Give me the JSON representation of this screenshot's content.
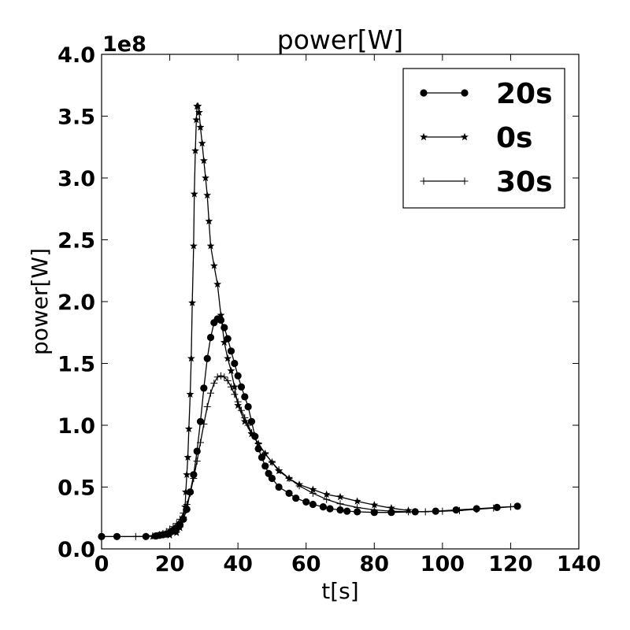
{
  "chart_data": {
    "type": "line",
    "title": "power[W]",
    "xlabel": "t[s]",
    "ylabel": "power[W]",
    "y_offset_label": "1e8",
    "xlim": [
      0,
      140
    ],
    "ylim": [
      0,
      400000000
    ],
    "grid": false,
    "legend_position": "top-right",
    "x_ticks": [
      0,
      20,
      40,
      60,
      80,
      100,
      120,
      140
    ],
    "x_tick_labels": [
      "0",
      "20",
      "40",
      "60",
      "80",
      "100",
      "120",
      "140"
    ],
    "y_ticks": [
      0,
      50000000,
      100000000,
      150000000,
      200000000,
      250000000,
      300000000,
      350000000,
      400000000
    ],
    "y_tick_labels": [
      "0.0",
      "0.5",
      "1.0",
      "1.5",
      "2.0",
      "2.5",
      "3.0",
      "3.5",
      "4.0"
    ],
    "series": [
      {
        "name": "20s",
        "marker": "circle",
        "color": "#000000",
        "x": [
          0,
          4.5,
          13,
          16,
          17,
          18,
          19,
          20,
          21,
          22,
          23,
          24,
          25,
          26,
          27,
          28,
          29,
          30,
          31,
          32,
          33,
          34,
          35,
          36,
          37,
          38,
          39,
          40,
          41,
          42,
          43,
          44,
          45,
          46,
          47,
          48,
          49,
          50,
          52,
          55,
          57,
          60,
          62,
          65,
          67,
          70,
          72,
          75,
          80,
          85,
          92,
          98,
          104,
          110,
          116,
          122
        ],
        "y": [
          10000000,
          10000000,
          10000000,
          10500000,
          11000000,
          11500000,
          12000000,
          13000000,
          14500000,
          16500000,
          19500000,
          24000000,
          32000000,
          46000000,
          60000000,
          79000000,
          103000000,
          130000000,
          154000000,
          171000000,
          183000000,
          186000000,
          185000000,
          179000000,
          170000000,
          160000000,
          150000000,
          140000000,
          131000000,
          123000000,
          115000000,
          103000000,
          91000000,
          81000000,
          74000000,
          67000000,
          61000000,
          57000000,
          50000000,
          45000000,
          41000000,
          38000000,
          36000000,
          34000000,
          32500000,
          31500000,
          30500000,
          30000000,
          29500000,
          29500000,
          30000000,
          30500000,
          31500000,
          32500000,
          33500000,
          34500000
        ]
      },
      {
        "name": "0s",
        "marker": "star",
        "color": "#000000",
        "x": [
          15,
          20,
          22,
          23,
          24,
          24.5,
          24.7,
          25,
          25.3,
          25.6,
          26,
          26.3,
          26.6,
          27,
          27.2,
          27.5,
          27.8,
          28,
          28.3,
          28.6,
          29,
          29.5,
          30,
          30.5,
          31,
          31.5,
          32,
          33,
          34,
          35,
          36,
          37,
          38,
          39,
          40,
          42,
          44,
          46,
          48,
          50,
          52,
          55,
          58,
          62,
          66,
          70,
          75,
          80,
          85,
          90
        ],
        "y": [
          10000000,
          11000000,
          13000000,
          17000000,
          25000000,
          34000000,
          46000000,
          60000000,
          74000000,
          97000000,
          125000000,
          154000000,
          199000000,
          245000000,
          287000000,
          322000000,
          347000000,
          358000000,
          358000000,
          353000000,
          341000000,
          328000000,
          314000000,
          300000000,
          286000000,
          265000000,
          245000000,
          229000000,
          214000000,
          189000000,
          167000000,
          154000000,
          144000000,
          131000000,
          116000000,
          103000000,
          93000000,
          85000000,
          77000000,
          70000000,
          63000000,
          57000000,
          52000000,
          48000000,
          44000000,
          42000000,
          38500000,
          35500000,
          33000000,
          31000000
        ]
      },
      {
        "name": "30s",
        "marker": "plus",
        "color": "#000000",
        "x": [
          10,
          13,
          15,
          17,
          18,
          19,
          20,
          21,
          22,
          23,
          24,
          25,
          26,
          27,
          28,
          29,
          30,
          31,
          32,
          33,
          34,
          35,
          36,
          37,
          38,
          39,
          40,
          41,
          42,
          43,
          44,
          46,
          48,
          50,
          52,
          55,
          58,
          62,
          66,
          70,
          75,
          80,
          85,
          90,
          95,
          100,
          105,
          110,
          115,
          120
        ],
        "y": [
          10000000,
          10000000,
          10500000,
          11500000,
          12500000,
          14000000,
          16000000,
          18000000,
          20500000,
          24000000,
          29000000,
          36000000,
          45000000,
          57000000,
          71000000,
          86000000,
          101000000,
          115000000,
          126000000,
          134000000,
          139000000,
          140000000,
          139000000,
          136000000,
          131000000,
          125000000,
          119000000,
          112000000,
          106000000,
          100000000,
          94000000,
          85000000,
          77000000,
          70000000,
          64000000,
          57000000,
          51000000,
          45000000,
          40000000,
          36500000,
          33500000,
          31500000,
          30500000,
          30000000,
          30000000,
          30500000,
          31000000,
          32000000,
          33000000,
          34000000
        ]
      }
    ]
  }
}
